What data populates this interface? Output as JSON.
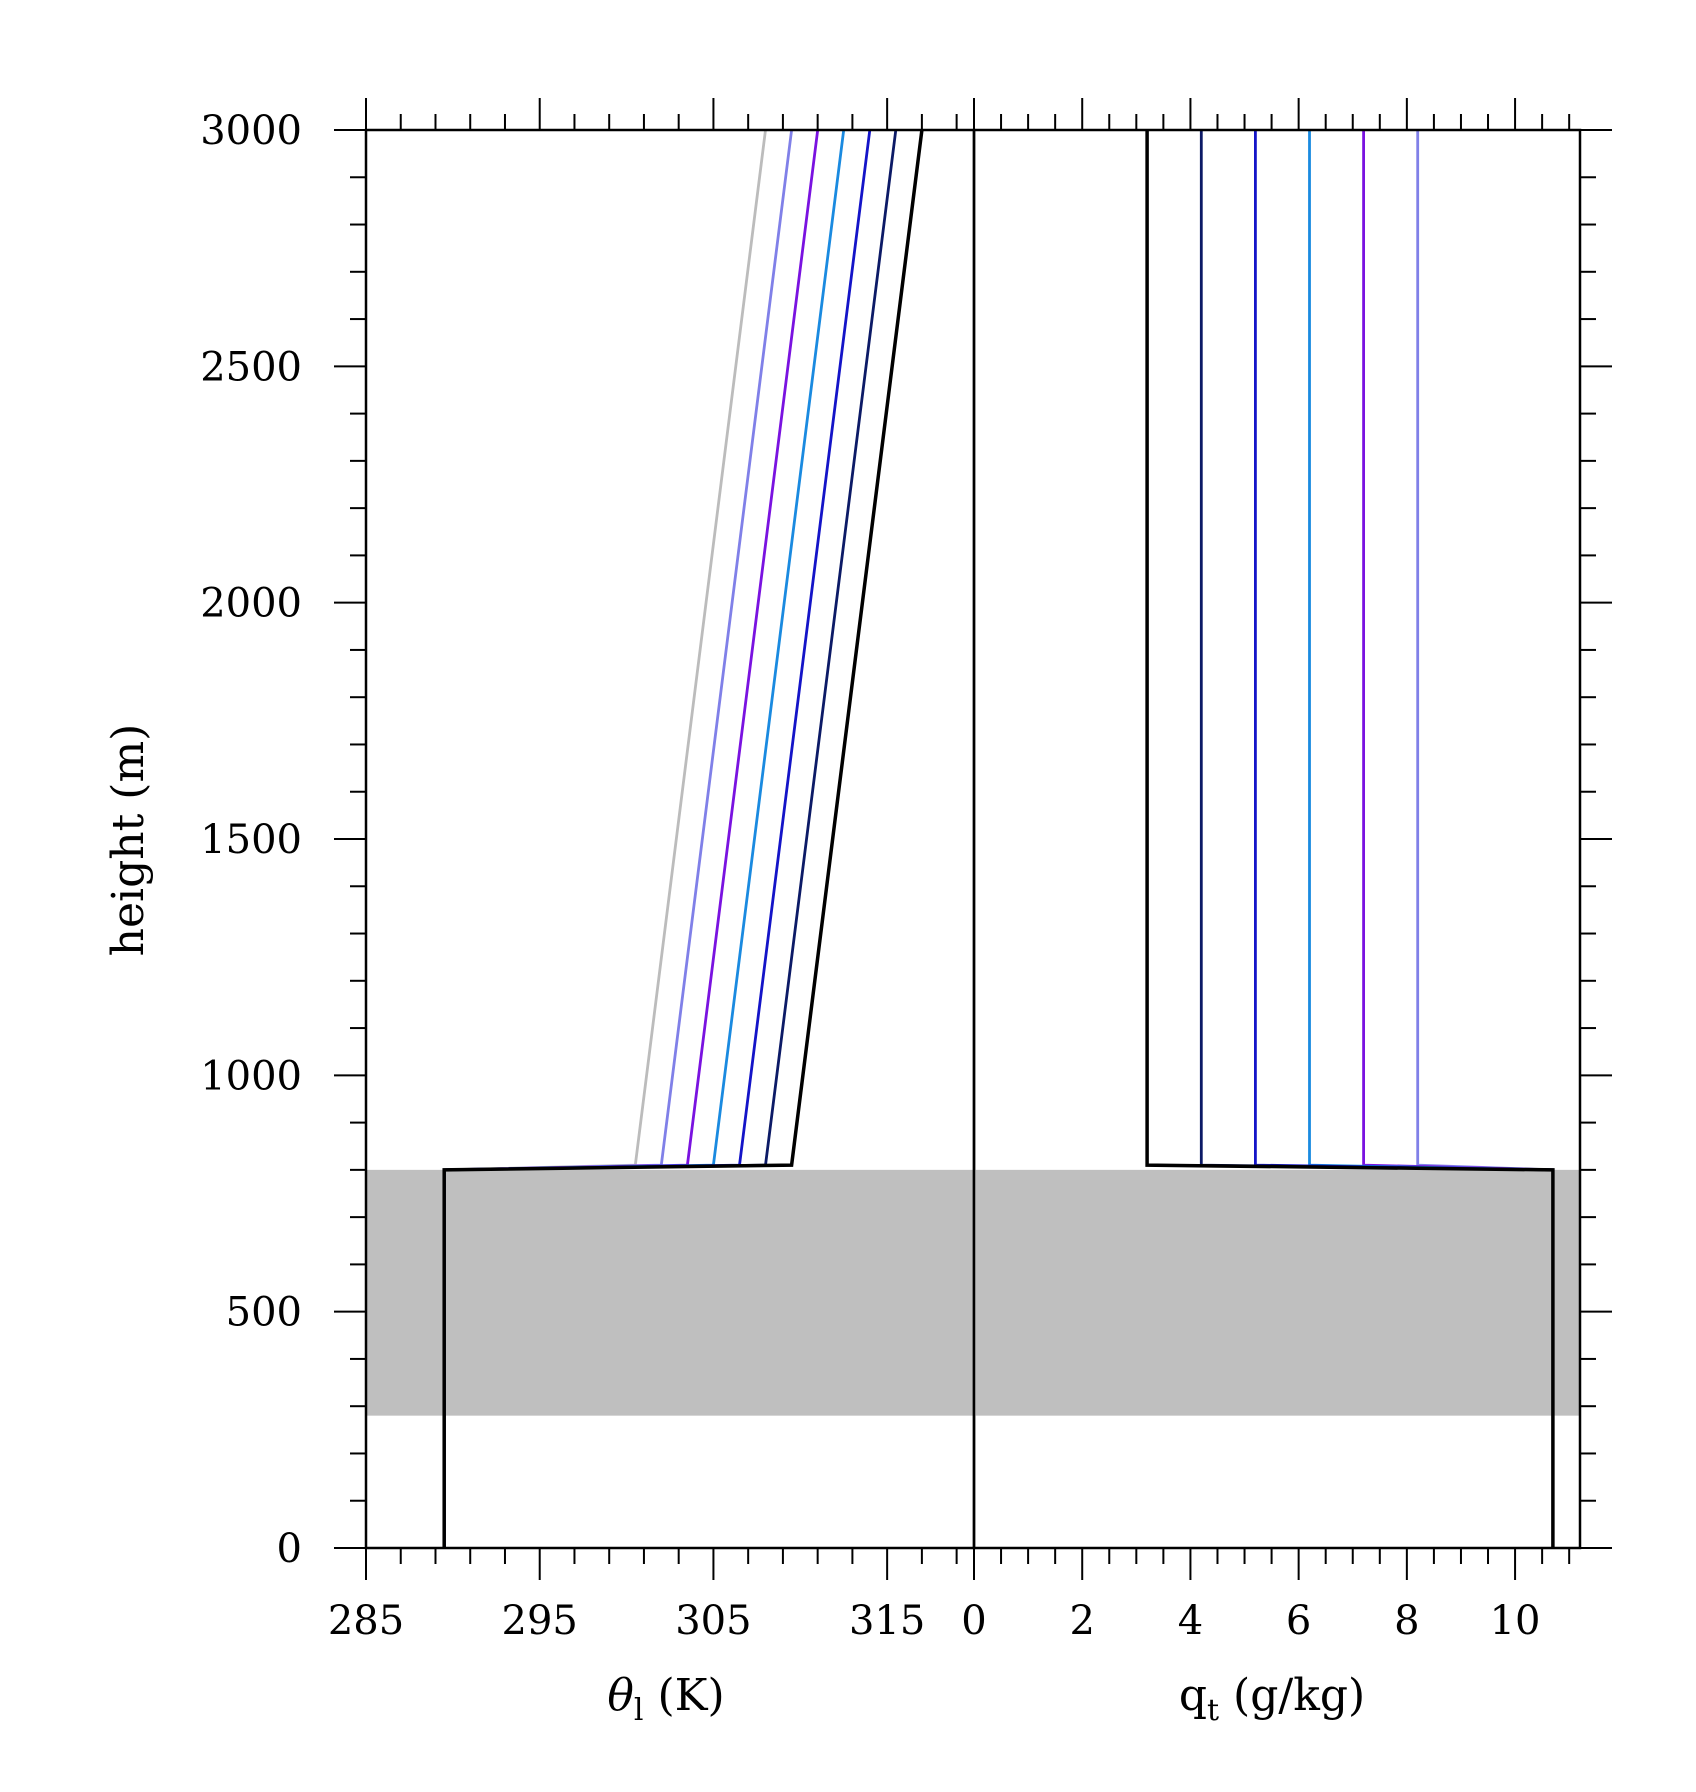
{
  "colors": {
    "shade": "#bfbfbf",
    "series": [
      "#000000",
      "#0c1a66",
      "#1414c8",
      "#1a8ae0",
      "#7a12e0",
      "#8080e8",
      "#bcbcbc"
    ]
  },
  "chart_data": [
    {
      "type": "line",
      "panel": "left",
      "ylabel": "height (m)",
      "xlabel": "θl (K)",
      "xlabel_symbol": "θ",
      "xlabel_sub": "l",
      "xlabel_unit": " (K)",
      "xlim": [
        285,
        320
      ],
      "ylim": [
        0,
        3000
      ],
      "xticks": [
        285,
        295,
        305,
        315
      ],
      "xtick_labels": [
        "285",
        "295",
        "305",
        "315"
      ],
      "yticks": [
        0,
        500,
        1000,
        1500,
        2000,
        2500,
        3000
      ],
      "ytick_labels": [
        "0",
        "500",
        "1000",
        "1500",
        "2000",
        "2500",
        "3000"
      ],
      "shaded_band_y": [
        280,
        800
      ],
      "grid": false,
      "series": [
        {
          "points": [
            [
              289.5,
              0
            ],
            [
              289.5,
              800
            ],
            [
              309.5,
              810
            ],
            [
              317.0,
              3000
            ]
          ]
        },
        {
          "points": [
            [
              289.5,
              0
            ],
            [
              289.5,
              800
            ],
            [
              308.0,
              810
            ],
            [
              315.5,
              3000
            ]
          ]
        },
        {
          "points": [
            [
              289.5,
              0
            ],
            [
              289.5,
              800
            ],
            [
              306.5,
              810
            ],
            [
              314.0,
              3000
            ]
          ]
        },
        {
          "points": [
            [
              289.5,
              0
            ],
            [
              289.5,
              800
            ],
            [
              305.0,
              810
            ],
            [
              312.5,
              3000
            ]
          ]
        },
        {
          "points": [
            [
              289.5,
              0
            ],
            [
              289.5,
              800
            ],
            [
              303.5,
              810
            ],
            [
              311.0,
              3000
            ]
          ]
        },
        {
          "points": [
            [
              289.5,
              0
            ],
            [
              289.5,
              800
            ],
            [
              302.0,
              810
            ],
            [
              309.5,
              3000
            ]
          ]
        },
        {
          "points": [
            [
              289.5,
              0
            ],
            [
              289.5,
              800
            ],
            [
              300.5,
              810
            ],
            [
              308.0,
              3000
            ]
          ]
        }
      ]
    },
    {
      "type": "line",
      "panel": "right",
      "xlabel": "qt (g/kg)",
      "xlabel_symbol": "q",
      "xlabel_sub": "t",
      "xlabel_unit": " (g/kg)",
      "xlim": [
        0,
        11.2
      ],
      "ylim": [
        0,
        3000
      ],
      "xticks": [
        0,
        2,
        4,
        6,
        8,
        10
      ],
      "xtick_labels": [
        "0",
        "2",
        "4",
        "6",
        "8",
        "10"
      ],
      "shaded_band_y": [
        280,
        800
      ],
      "grid": false,
      "series": [
        {
          "points": [
            [
              10.7,
              0
            ],
            [
              10.7,
              800
            ],
            [
              3.2,
              810
            ],
            [
              3.2,
              3000
            ]
          ]
        },
        {
          "points": [
            [
              10.7,
              0
            ],
            [
              10.7,
              800
            ],
            [
              4.2,
              810
            ],
            [
              4.2,
              3000
            ]
          ]
        },
        {
          "points": [
            [
              10.7,
              0
            ],
            [
              10.7,
              800
            ],
            [
              5.2,
              810
            ],
            [
              5.2,
              3000
            ]
          ]
        },
        {
          "points": [
            [
              10.7,
              0
            ],
            [
              10.7,
              800
            ],
            [
              6.2,
              810
            ],
            [
              6.2,
              3000
            ]
          ]
        },
        {
          "points": [
            [
              10.7,
              0
            ],
            [
              10.7,
              800
            ],
            [
              7.2,
              810
            ],
            [
              7.2,
              3000
            ]
          ]
        },
        {
          "points": [
            [
              10.7,
              0
            ],
            [
              10.7,
              800
            ],
            [
              8.2,
              810
            ],
            [
              8.2,
              3000
            ]
          ]
        }
      ]
    }
  ]
}
